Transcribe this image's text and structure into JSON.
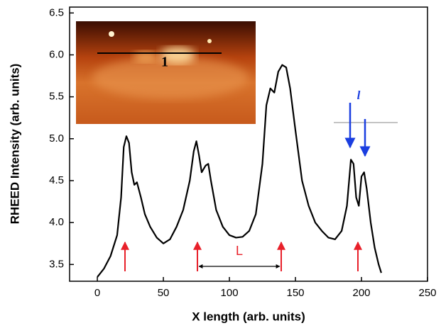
{
  "chart_data": {
    "type": "line",
    "xlabel": "X length (arb. units)",
    "ylabel": "RHEED Intensity (arb. units)",
    "xlim": [
      -21,
      250
    ],
    "ylim": [
      3.3,
      6.57
    ],
    "xticks": [
      0,
      50,
      100,
      150,
      200,
      250
    ],
    "yticks": [
      3.5,
      {
        "value": 4.0,
        "label": "4.0"
      },
      4.5,
      {
        "value": 5.0,
        "label": "5.0"
      },
      5.5,
      {
        "value": 6.0,
        "label": "6.0"
      },
      6.5
    ],
    "annotations": [
      "L",
      "l",
      "1"
    ],
    "series": [
      {
        "color": "#000000",
        "x": [
          0,
          5,
          10,
          15,
          18,
          20,
          22,
          24,
          26,
          28,
          30,
          33,
          36,
          40,
          45,
          50,
          55,
          60,
          65,
          70,
          73,
          75,
          77,
          79,
          82,
          84,
          86,
          90,
          95,
          100,
          105,
          110,
          115,
          120,
          125,
          128,
          131,
          134,
          137,
          140,
          143,
          146,
          150,
          155,
          160,
          165,
          170,
          175,
          180,
          185,
          189,
          192,
          194,
          196,
          198,
          200,
          202,
          204,
          207,
          210,
          213,
          215
        ],
        "values": [
          3.35,
          3.45,
          3.6,
          3.85,
          4.3,
          4.9,
          5.03,
          4.95,
          4.6,
          4.45,
          4.48,
          4.3,
          4.1,
          3.95,
          3.82,
          3.75,
          3.8,
          3.95,
          4.15,
          4.5,
          4.85,
          4.97,
          4.8,
          4.6,
          4.68,
          4.7,
          4.5,
          4.15,
          3.95,
          3.85,
          3.82,
          3.83,
          3.9,
          4.1,
          4.7,
          5.4,
          5.6,
          5.55,
          5.8,
          5.88,
          5.85,
          5.6,
          5.1,
          4.5,
          4.2,
          4.0,
          3.9,
          3.82,
          3.8,
          3.9,
          4.2,
          4.75,
          4.7,
          4.3,
          4.2,
          4.55,
          4.6,
          4.4,
          4.0,
          3.7,
          3.5,
          3.4
        ]
      }
    ]
  }
}
